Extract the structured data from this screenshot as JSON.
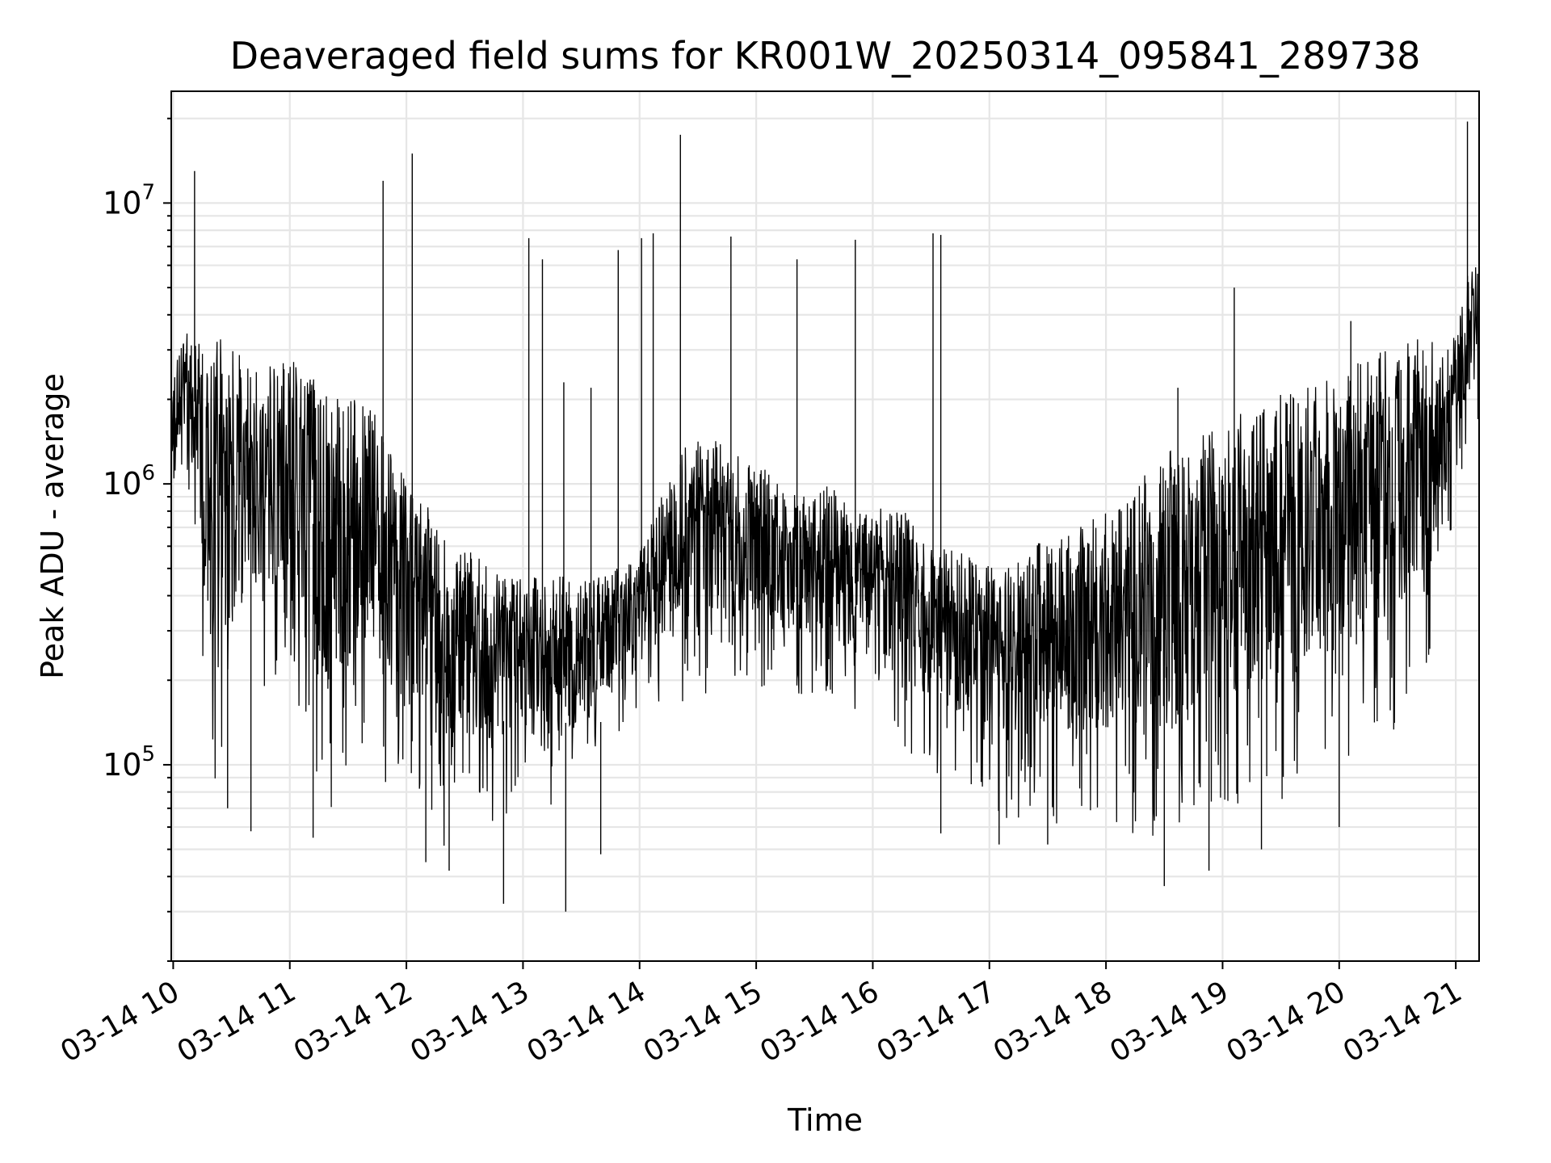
{
  "chart_data": {
    "type": "line",
    "title": "Deaveraged field sums for KR001W_20250314_095841_289738",
    "xlabel": "Time",
    "ylabel": "Peak ADU - average",
    "yscale": "log",
    "ylim": [
      20000,
      25000000
    ],
    "xlim": [
      "2025-03-14 09:59",
      "2025-03-14 21:12"
    ],
    "grid": true,
    "line_color": "#000000",
    "x_tick_labels": [
      "03-14 10",
      "03-14 11",
      "03-14 12",
      "03-14 13",
      "03-14 14",
      "03-14 15",
      "03-14 16",
      "03-14 17",
      "03-14 18",
      "03-14 19",
      "03-14 20",
      "03-14 21"
    ],
    "x_tick_values": [
      "2025-03-14 10:00",
      "2025-03-14 11:00",
      "2025-03-14 12:00",
      "2025-03-14 13:00",
      "2025-03-14 14:00",
      "2025-03-14 15:00",
      "2025-03-14 16:00",
      "2025-03-14 17:00",
      "2025-03-14 18:00",
      "2025-03-14 19:00",
      "2025-03-14 20:00",
      "2025-03-14 21:00"
    ],
    "y_tick_labels": [
      {
        "base": "10",
        "exp": "5",
        "value": 100000
      },
      {
        "base": "10",
        "exp": "6",
        "value": 1000000
      },
      {
        "base": "10",
        "exp": "7",
        "value": 10000000
      }
    ],
    "series": [
      {
        "x": [
          "2025-03-14 09:59",
          "2025-03-14 10:05",
          "2025-03-14 10:12",
          "2025-03-14 10:18",
          "2025-03-14 10:24",
          "2025-03-14 10:30",
          "2025-03-14 10:36",
          "2025-03-14 10:42",
          "2025-03-14 10:48",
          "2025-03-14 10:54",
          "2025-03-14 11:00",
          "2025-03-14 11:06",
          "2025-03-14 11:12",
          "2025-03-14 11:18",
          "2025-03-14 11:24",
          "2025-03-14 11:30",
          "2025-03-14 11:36",
          "2025-03-14 11:42",
          "2025-03-14 11:48",
          "2025-03-14 11:54",
          "2025-03-14 12:00",
          "2025-03-14 12:06",
          "2025-03-14 12:12",
          "2025-03-14 12:18",
          "2025-03-14 12:24",
          "2025-03-14 12:30",
          "2025-03-14 12:36",
          "2025-03-14 12:42",
          "2025-03-14 12:48",
          "2025-03-14 12:54",
          "2025-03-14 13:00",
          "2025-03-14 13:06",
          "2025-03-14 13:12",
          "2025-03-14 13:18",
          "2025-03-14 13:24",
          "2025-03-14 13:30",
          "2025-03-14 13:36",
          "2025-03-14 13:42",
          "2025-03-14 13:48",
          "2025-03-14 13:54",
          "2025-03-14 14:00",
          "2025-03-14 14:06",
          "2025-03-14 14:12",
          "2025-03-14 14:18",
          "2025-03-14 14:24",
          "2025-03-14 14:30",
          "2025-03-14 14:36",
          "2025-03-14 14:42",
          "2025-03-14 14:48",
          "2025-03-14 14:54",
          "2025-03-14 15:00",
          "2025-03-14 15:06",
          "2025-03-14 15:12",
          "2025-03-14 15:18",
          "2025-03-14 15:24",
          "2025-03-14 15:30",
          "2025-03-14 15:36",
          "2025-03-14 15:42",
          "2025-03-14 15:48",
          "2025-03-14 15:54",
          "2025-03-14 16:00",
          "2025-03-14 16:06",
          "2025-03-14 16:12",
          "2025-03-14 16:18",
          "2025-03-14 16:24",
          "2025-03-14 16:30",
          "2025-03-14 16:36",
          "2025-03-14 16:42",
          "2025-03-14 16:48",
          "2025-03-14 16:54",
          "2025-03-14 17:00",
          "2025-03-14 17:06",
          "2025-03-14 17:12",
          "2025-03-14 17:18",
          "2025-03-14 17:24",
          "2025-03-14 17:30",
          "2025-03-14 17:36",
          "2025-03-14 17:42",
          "2025-03-14 17:48",
          "2025-03-14 17:54",
          "2025-03-14 18:00",
          "2025-03-14 18:06",
          "2025-03-14 18:12",
          "2025-03-14 18:18",
          "2025-03-14 18:24",
          "2025-03-14 18:30",
          "2025-03-14 18:36",
          "2025-03-14 18:42",
          "2025-03-14 18:48",
          "2025-03-14 18:54",
          "2025-03-14 19:00",
          "2025-03-14 19:06",
          "2025-03-14 19:12",
          "2025-03-14 19:18",
          "2025-03-14 19:24",
          "2025-03-14 19:30",
          "2025-03-14 19:36",
          "2025-03-14 19:42",
          "2025-03-14 19:48",
          "2025-03-14 19:54",
          "2025-03-14 20:00",
          "2025-03-14 20:06",
          "2025-03-14 20:12",
          "2025-03-14 20:18",
          "2025-03-14 20:24",
          "2025-03-14 20:30",
          "2025-03-14 20:36",
          "2025-03-14 20:42",
          "2025-03-14 20:48",
          "2025-03-14 20:54",
          "2025-03-14 21:00",
          "2025-03-14 21:06",
          "2025-03-14 21:12"
        ],
        "y_high": [
          2200000,
          3500000,
          3300000,
          2800000,
          3500000,
          3200000,
          2800000,
          2700000,
          2600000,
          2700000,
          3000000,
          2600000,
          2400000,
          2200000,
          2300000,
          2100000,
          2000000,
          1900000,
          1700000,
          1300000,
          1000000,
          900000,
          850000,
          700000,
          640000,
          600000,
          560000,
          520000,
          480000,
          470000,
          460000,
          470000,
          480000,
          470000,
          470000,
          450000,
          460000,
          480000,
          500000,
          520000,
          600000,
          750000,
          950000,
          1100000,
          1400000,
          1500000,
          1500000,
          1400000,
          1300000,
          1200000,
          1200000,
          1100000,
          1000000,
          950000,
          920000,
          900000,
          1000000,
          950000,
          850000,
          800000,
          800000,
          850000,
          900000,
          780000,
          650000,
          600000,
          600000,
          590000,
          560000,
          520000,
          520000,
          530000,
          550000,
          600000,
          620000,
          650000,
          680000,
          700000,
          720000,
          760000,
          800000,
          850000,
          950000,
          1050000,
          1150000,
          1250000,
          1400000,
          1450000,
          1500000,
          1600000,
          1700000,
          1750000,
          1800000,
          1900000,
          2000000,
          2100000,
          2200000,
          2300000,
          2400000,
          2500000,
          2600000,
          2700000,
          2800000,
          2900000,
          3000000,
          3100000,
          3200000,
          3300000,
          3200000,
          3100000,
          3600000,
          5500000,
          7300000
        ],
        "y_low": [
          900000,
          1100000,
          600000,
          100000,
          80000,
          110000,
          200000,
          180000,
          150000,
          110000,
          70000,
          100000,
          80000,
          60000,
          75000,
          80000,
          100000,
          90000,
          70000,
          80000,
          75000,
          60000,
          50000,
          48000,
          55000,
          60000,
          62000,
          58000,
          60000,
          70000,
          75000,
          80000,
          70000,
          65000,
          60000,
          90000,
          100000,
          110000,
          120000,
          130000,
          140000,
          150000,
          170000,
          160000,
          170000,
          150000,
          160000,
          170000,
          180000,
          175000,
          180000,
          190000,
          180000,
          170000,
          175000,
          180000,
          170000,
          160000,
          150000,
          145000,
          150000,
          140000,
          130000,
          110000,
          100000,
          95000,
          90000,
          85000,
          80000,
          75000,
          70000,
          65000,
          60000,
          60000,
          58000,
          62000,
          60000,
          58000,
          60000,
          62000,
          60000,
          58000,
          56000,
          55000,
          55000,
          52000,
          50000,
          52000,
          55000,
          58000,
          60000,
          62000,
          65000,
          68000,
          70000,
          72000,
          75000,
          78000,
          82000,
          85000,
          90000,
          95000,
          100000,
          110000,
          120000,
          140000,
          170000,
          200000,
          250000,
          450000,
          900000,
          1300000,
          1500000
        ],
        "spikes": [
          {
            "x": "2025-03-14 10:11",
            "y": 13000000
          },
          {
            "x": "2025-03-14 11:48",
            "y": 12000000
          },
          {
            "x": "2025-03-14 12:03",
            "y": 15000000
          },
          {
            "x": "2025-03-14 13:03",
            "y": 7500000
          },
          {
            "x": "2025-03-14 13:10",
            "y": 6300000
          },
          {
            "x": "2025-03-14 13:21",
            "y": 2300000
          },
          {
            "x": "2025-03-14 13:35",
            "y": 2200000
          },
          {
            "x": "2025-03-14 13:49",
            "y": 6800000
          },
          {
            "x": "2025-03-14 14:01",
            "y": 7500000
          },
          {
            "x": "2025-03-14 14:07",
            "y": 7800000
          },
          {
            "x": "2025-03-14 14:21",
            "y": 17500000
          },
          {
            "x": "2025-03-14 14:47",
            "y": 7600000
          },
          {
            "x": "2025-03-14 15:21",
            "y": 6300000
          },
          {
            "x": "2025-03-14 15:51",
            "y": 7400000
          },
          {
            "x": "2025-03-14 16:31",
            "y": 7800000
          },
          {
            "x": "2025-03-14 16:35",
            "y": 7700000
          },
          {
            "x": "2025-03-14 18:37",
            "y": 2200000
          },
          {
            "x": "2025-03-14 19:06",
            "y": 5000000
          },
          {
            "x": "2025-03-14 20:06",
            "y": 3800000
          },
          {
            "x": "2025-03-14 21:06",
            "y": 19500000
          }
        ],
        "dips": [
          {
            "x": "2025-03-14 10:28",
            "y": 70000
          },
          {
            "x": "2025-03-14 10:40",
            "y": 58000
          },
          {
            "x": "2025-03-14 11:12",
            "y": 55000
          },
          {
            "x": "2025-03-14 12:10",
            "y": 45000
          },
          {
            "x": "2025-03-14 12:22",
            "y": 42000
          },
          {
            "x": "2025-03-14 12:50",
            "y": 32000
          },
          {
            "x": "2025-03-14 13:22",
            "y": 30000
          },
          {
            "x": "2025-03-14 13:40",
            "y": 48000
          },
          {
            "x": "2025-03-14 16:35",
            "y": 57000
          },
          {
            "x": "2025-03-14 17:05",
            "y": 52000
          },
          {
            "x": "2025-03-14 17:30",
            "y": 52000
          },
          {
            "x": "2025-03-14 18:30",
            "y": 37000
          },
          {
            "x": "2025-03-14 18:53",
            "y": 42000
          },
          {
            "x": "2025-03-14 19:20",
            "y": 50000
          },
          {
            "x": "2025-03-14 20:00",
            "y": 60000
          }
        ]
      }
    ]
  }
}
